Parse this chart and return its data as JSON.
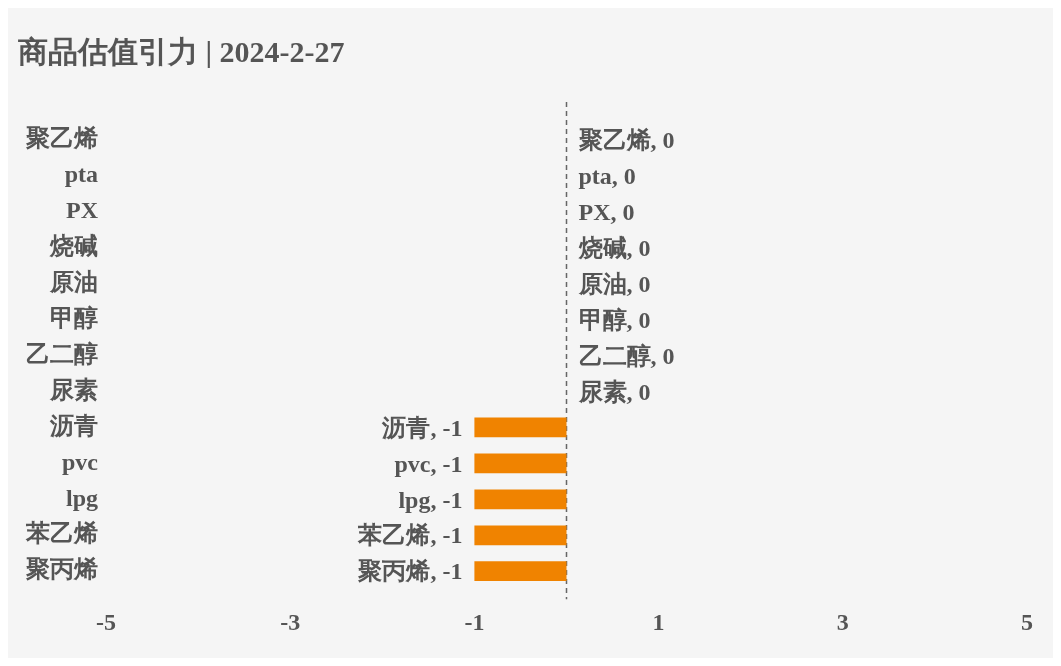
{
  "chart_data": {
    "type": "bar",
    "orientation": "horizontal",
    "title": "商品估值引力 | 2024-2-27",
    "categories": [
      "聚乙烯",
      "pta",
      "PX",
      "烧碱",
      "原油",
      "甲醇",
      "乙二醇",
      "尿素",
      "沥青",
      "pvc",
      "lpg",
      "苯乙烯",
      "聚丙烯"
    ],
    "values": [
      0,
      0,
      0,
      0,
      0,
      0,
      0,
      0,
      -1,
      -1,
      -1,
      -1,
      -1
    ],
    "value_labels": [
      "聚乙烯, 0",
      "pta, 0",
      "PX, 0",
      "烧碱, 0",
      "原油, 0",
      "甲醇, 0",
      "乙二醇, 0",
      "尿素, 0",
      "沥青, -1",
      "pvc, -1",
      "lpg, -1",
      "苯乙烯, -1",
      "聚丙烯, -1"
    ],
    "color": "#f08300",
    "xlim": [
      -5,
      5
    ],
    "xticks": [
      -5,
      -3,
      -1,
      1,
      3,
      5
    ],
    "ref_lines": [
      {
        "axis": "x",
        "value": 0,
        "color": "#666666",
        "line_style": "dashed"
      }
    ]
  }
}
